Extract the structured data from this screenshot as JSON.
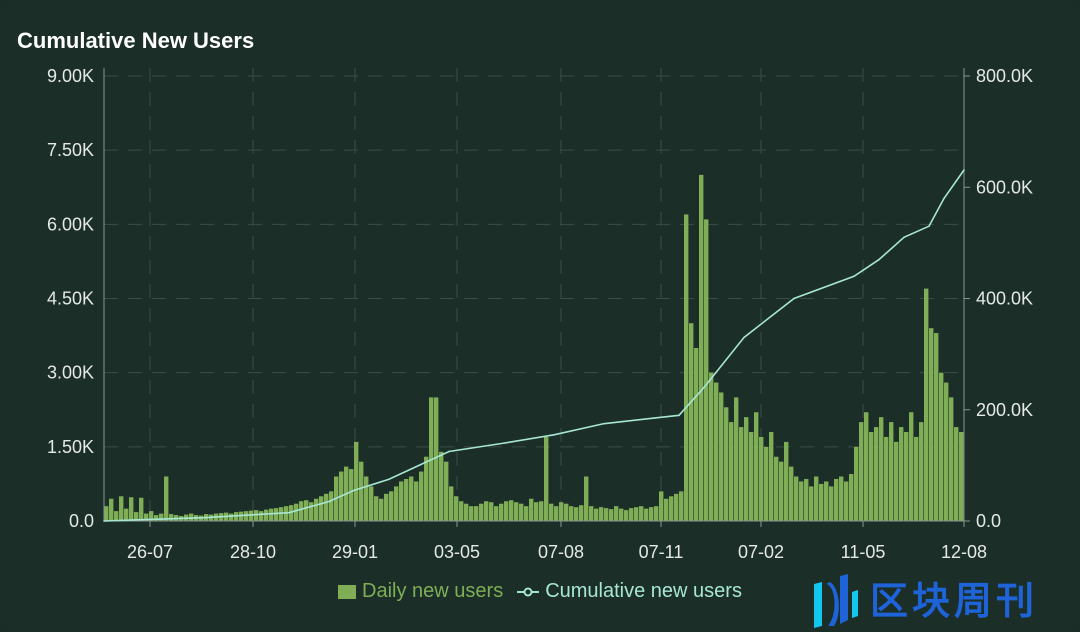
{
  "chart_data": {
    "type": "bar+line",
    "title": "Cumulative New Users",
    "x_unit": "5-day bins",
    "x_ticks": [
      {
        "label": "26-07",
        "bin": 9.2
      },
      {
        "label": "28-10",
        "bin": 29.8
      },
      {
        "label": "29-01",
        "bin": 50.2
      },
      {
        "label": "03-05",
        "bin": 70.6
      },
      {
        "label": "07-08",
        "bin": 91.4
      },
      {
        "label": "07-11",
        "bin": 111.4
      },
      {
        "label": "07-02",
        "bin": 131.4
      },
      {
        "label": "11-05",
        "bin": 151.8
      },
      {
        "label": "12-08",
        "bin": 172
      }
    ],
    "y_left": {
      "min": 0,
      "max": 9000,
      "ticks": [
        0,
        1500,
        3000,
        4500,
        6000,
        7500,
        9000
      ],
      "labels": [
        "0.0",
        "1.50K",
        "3.00K",
        "4.50K",
        "6.00K",
        "7.50K",
        "9.00K"
      ]
    },
    "y_right": {
      "min": 0,
      "max": 800000,
      "ticks": [
        0,
        200000,
        400000,
        600000,
        800000
      ],
      "labels": [
        "0.0",
        "200.0K",
        "400.0K",
        "600.0K",
        "800.0K"
      ]
    },
    "grid": true,
    "legend_position": "bottom-center",
    "series": [
      {
        "name": "Daily new users",
        "type": "bar",
        "axis": "left",
        "color": "#7fae56",
        "values": [
          300,
          450,
          200,
          500,
          250,
          480,
          180,
          470,
          150,
          200,
          120,
          150,
          900,
          140,
          120,
          100,
          130,
          150,
          120,
          110,
          140,
          130,
          150,
          160,
          170,
          150,
          180,
          190,
          200,
          210,
          220,
          200,
          230,
          250,
          260,
          280,
          300,
          320,
          350,
          400,
          420,
          380,
          450,
          500,
          550,
          600,
          900,
          1000,
          1100,
          1050,
          1600,
          1200,
          900,
          700,
          500,
          450,
          550,
          600,
          700,
          800,
          850,
          900,
          800,
          1000,
          1300,
          2500,
          2500,
          1400,
          1200,
          700,
          500,
          400,
          350,
          300,
          300,
          350,
          400,
          380,
          300,
          350,
          400,
          420,
          380,
          350,
          300,
          450,
          380,
          400,
          1700,
          350,
          300,
          380,
          350,
          300,
          280,
          320,
          900,
          300,
          250,
          280,
          260,
          240,
          300,
          250,
          220,
          260,
          280,
          300,
          250,
          280,
          300,
          600,
          450,
          500,
          550,
          600,
          6200,
          4000,
          3500,
          7000,
          6100,
          3000,
          2800,
          2600,
          2300,
          2000,
          2500,
          1900,
          2100,
          1800,
          2200,
          1700,
          1500,
          1800,
          1300,
          1200,
          1600,
          1100,
          900,
          800,
          850,
          700,
          900,
          750,
          800,
          700,
          850,
          900,
          800,
          950,
          1500,
          2000,
          2200,
          1800,
          1900,
          2100,
          1700,
          2000,
          1600,
          1900,
          1800,
          2200,
          1700,
          2000,
          4700,
          3900,
          3800,
          3000,
          2800,
          2500,
          1900,
          1800
        ]
      },
      {
        "name": "Cumulative new users",
        "type": "line",
        "axis": "right",
        "color": "#a8e6d4",
        "points": [
          [
            0,
            0
          ],
          [
            20,
            6000
          ],
          [
            37,
            15000
          ],
          [
            45,
            35000
          ],
          [
            50,
            55000
          ],
          [
            57,
            75000
          ],
          [
            63,
            100000
          ],
          [
            69,
            125000
          ],
          [
            80,
            140000
          ],
          [
            90,
            155000
          ],
          [
            100,
            175000
          ],
          [
            110,
            185000
          ],
          [
            115,
            190000
          ],
          [
            120,
            240000
          ],
          [
            128,
            330000
          ],
          [
            138,
            400000
          ],
          [
            150,
            440000
          ],
          [
            155,
            470000
          ],
          [
            160,
            510000
          ],
          [
            165,
            530000
          ],
          [
            168,
            580000
          ],
          [
            172,
            631000
          ]
        ]
      }
    ]
  },
  "legend": {
    "bar_label": "Daily new users",
    "line_label": "Cumulative new users"
  },
  "watermark": {
    "text": "区块周刊"
  }
}
